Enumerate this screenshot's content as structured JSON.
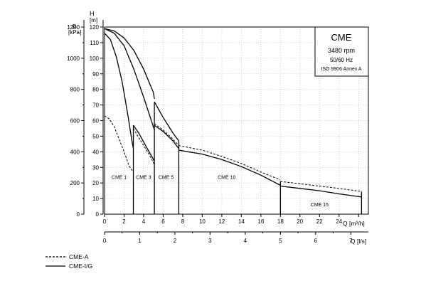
{
  "chart_data": {
    "type": "line",
    "title": "CME",
    "info_box": [
      "CME",
      "3480 rpm",
      "50/60 Hz",
      "ISO 9906 Annex A"
    ],
    "y_left": {
      "label_top": "p",
      "label_unit": "[kPa]",
      "ticks": [
        0,
        200,
        400,
        600,
        800,
        1000,
        1200
      ]
    },
    "y_right": {
      "label_top": "H",
      "label_unit": "[m]",
      "ticks": [
        0,
        10,
        20,
        30,
        40,
        50,
        60,
        70,
        80,
        90,
        100,
        110,
        120
      ],
      "ylim": [
        0,
        120
      ]
    },
    "x_m3h": {
      "label": "Q [m³/h]",
      "ticks": [
        0,
        2,
        4,
        6,
        8,
        10,
        12,
        14,
        16,
        18,
        20,
        22,
        24,
        26
      ],
      "xlim": [
        0,
        27
      ]
    },
    "x_ls": {
      "label": "Q [l/s]",
      "ticks": [
        0,
        1,
        2,
        3,
        4,
        5,
        6,
        7
      ]
    },
    "grid": true,
    "legend": [
      {
        "label": "CME-A",
        "style": "dashed"
      },
      {
        "label": "CME-I/G",
        "style": "solid"
      }
    ],
    "region_labels": [
      {
        "text": "CME 1",
        "x": 1.5,
        "y": 24
      },
      {
        "text": "CME 3",
        "x": 4.0,
        "y": 24
      },
      {
        "text": "CME 5",
        "x": 6.3,
        "y": 24
      },
      {
        "text": "CME 10",
        "x": 12.5,
        "y": 24
      },
      {
        "text": "CME 15",
        "x": 22.0,
        "y": 6.5
      }
    ],
    "series": [
      {
        "style": "solid",
        "x": [
          0,
          0.6,
          1.2,
          1.8,
          2.4,
          2.8,
          2.95
        ],
        "y": [
          116,
          112,
          101,
          85,
          63,
          47,
          42
        ]
      },
      {
        "style": "dashed",
        "x": [
          0,
          0.5,
          1.0,
          1.5,
          2.0,
          2.5,
          2.95
        ],
        "y": [
          63,
          61,
          56,
          48,
          40,
          31,
          27
        ]
      },
      {
        "style": "solid",
        "x": [
          0,
          1,
          2,
          3,
          4,
          5.1
        ],
        "y": [
          119,
          116,
          108,
          93,
          75,
          54
        ]
      },
      {
        "style": "solid",
        "x": [
          2.95,
          3.5,
          4.2,
          5.1
        ],
        "y": [
          57,
          52,
          44,
          34
        ]
      },
      {
        "style": "dashed",
        "x": [
          2.95,
          3.6,
          4.4,
          5.1
        ],
        "y": [
          55,
          48,
          40,
          32
        ]
      },
      {
        "style": "solid",
        "x": [
          0,
          1,
          2,
          3,
          4,
          5,
          5.1
        ],
        "y": [
          119,
          117.5,
          113,
          105,
          93,
          78,
          74
        ]
      },
      {
        "style": "solid",
        "x": [
          5.1,
          6.0,
          7.0,
          7.6
        ],
        "y": [
          72,
          62,
          52,
          47
        ]
      },
      {
        "style": "solid",
        "x": [
          5.1,
          6.0,
          7.0,
          7.6
        ],
        "y": [
          57,
          53,
          47,
          42
        ]
      },
      {
        "style": "dashed",
        "x": [
          5.1,
          6.0,
          7.0,
          7.6
        ],
        "y": [
          58,
          54,
          48,
          44
        ]
      },
      {
        "style": "solid",
        "x": [
          7.6,
          10,
          12,
          14,
          16,
          18
        ],
        "y": [
          41,
          38.5,
          35,
          30.5,
          25,
          18.5
        ]
      },
      {
        "style": "dashed",
        "x": [
          7.6,
          10,
          12,
          14,
          16,
          18
        ],
        "y": [
          44,
          41,
          37,
          32.5,
          27,
          22
        ]
      },
      {
        "style": "solid",
        "x": [
          18,
          20,
          22,
          24,
          26.3
        ],
        "y": [
          18,
          16.5,
          15,
          13,
          11
        ]
      },
      {
        "style": "dashed",
        "x": [
          18,
          20,
          22,
          24,
          26.3
        ],
        "y": [
          21,
          19.5,
          18,
          16.5,
          14.5
        ]
      }
    ],
    "vertical_drops": [
      {
        "x": 2.95,
        "y_top": 57
      },
      {
        "x": 5.1,
        "y_top": 72
      },
      {
        "x": 7.6,
        "y_top": 47
      },
      {
        "x": 18,
        "y_top": 21
      },
      {
        "x": 26.3,
        "y_top": 14.5
      }
    ]
  }
}
